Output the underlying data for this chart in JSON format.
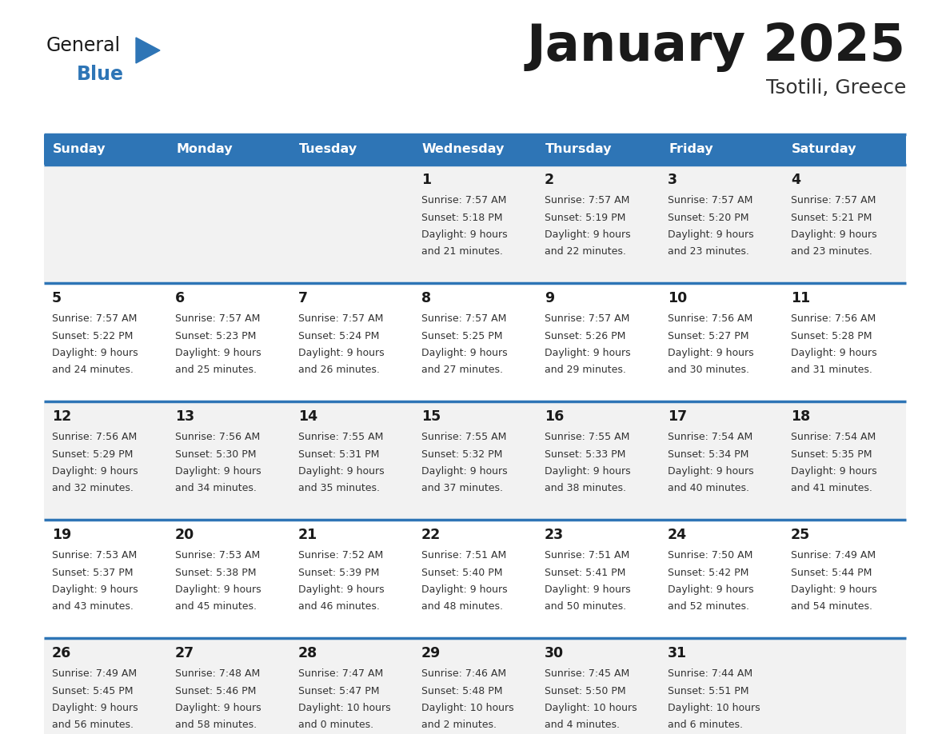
{
  "title": "January 2025",
  "subtitle": "Tsotili, Greece",
  "days_of_week": [
    "Sunday",
    "Monday",
    "Tuesday",
    "Wednesday",
    "Thursday",
    "Friday",
    "Saturday"
  ],
  "header_bg": "#2E75B6",
  "header_text": "#FFFFFF",
  "cell_bg_even": "#F2F2F2",
  "cell_bg_odd": "#FFFFFF",
  "border_color": "#2E75B6",
  "text_color": "#333333",
  "day_num_color": "#1a1a1a",
  "logo_color_general": "#1a1a1a",
  "logo_color_blue": "#2E75B6",
  "calendar_data": [
    [
      null,
      null,
      null,
      {
        "day": 1,
        "sunrise": "7:57 AM",
        "sunset": "5:18 PM",
        "daylight": "9 hours and 21 minutes"
      },
      {
        "day": 2,
        "sunrise": "7:57 AM",
        "sunset": "5:19 PM",
        "daylight": "9 hours and 22 minutes"
      },
      {
        "day": 3,
        "sunrise": "7:57 AM",
        "sunset": "5:20 PM",
        "daylight": "9 hours and 23 minutes"
      },
      {
        "day": 4,
        "sunrise": "7:57 AM",
        "sunset": "5:21 PM",
        "daylight": "9 hours and 23 minutes"
      }
    ],
    [
      {
        "day": 5,
        "sunrise": "7:57 AM",
        "sunset": "5:22 PM",
        "daylight": "9 hours and 24 minutes"
      },
      {
        "day": 6,
        "sunrise": "7:57 AM",
        "sunset": "5:23 PM",
        "daylight": "9 hours and 25 minutes"
      },
      {
        "day": 7,
        "sunrise": "7:57 AM",
        "sunset": "5:24 PM",
        "daylight": "9 hours and 26 minutes"
      },
      {
        "day": 8,
        "sunrise": "7:57 AM",
        "sunset": "5:25 PM",
        "daylight": "9 hours and 27 minutes"
      },
      {
        "day": 9,
        "sunrise": "7:57 AM",
        "sunset": "5:26 PM",
        "daylight": "9 hours and 29 minutes"
      },
      {
        "day": 10,
        "sunrise": "7:56 AM",
        "sunset": "5:27 PM",
        "daylight": "9 hours and 30 minutes"
      },
      {
        "day": 11,
        "sunrise": "7:56 AM",
        "sunset": "5:28 PM",
        "daylight": "9 hours and 31 minutes"
      }
    ],
    [
      {
        "day": 12,
        "sunrise": "7:56 AM",
        "sunset": "5:29 PM",
        "daylight": "9 hours and 32 minutes"
      },
      {
        "day": 13,
        "sunrise": "7:56 AM",
        "sunset": "5:30 PM",
        "daylight": "9 hours and 34 minutes"
      },
      {
        "day": 14,
        "sunrise": "7:55 AM",
        "sunset": "5:31 PM",
        "daylight": "9 hours and 35 minutes"
      },
      {
        "day": 15,
        "sunrise": "7:55 AM",
        "sunset": "5:32 PM",
        "daylight": "9 hours and 37 minutes"
      },
      {
        "day": 16,
        "sunrise": "7:55 AM",
        "sunset": "5:33 PM",
        "daylight": "9 hours and 38 minutes"
      },
      {
        "day": 17,
        "sunrise": "7:54 AM",
        "sunset": "5:34 PM",
        "daylight": "9 hours and 40 minutes"
      },
      {
        "day": 18,
        "sunrise": "7:54 AM",
        "sunset": "5:35 PM",
        "daylight": "9 hours and 41 minutes"
      }
    ],
    [
      {
        "day": 19,
        "sunrise": "7:53 AM",
        "sunset": "5:37 PM",
        "daylight": "9 hours and 43 minutes"
      },
      {
        "day": 20,
        "sunrise": "7:53 AM",
        "sunset": "5:38 PM",
        "daylight": "9 hours and 45 minutes"
      },
      {
        "day": 21,
        "sunrise": "7:52 AM",
        "sunset": "5:39 PM",
        "daylight": "9 hours and 46 minutes"
      },
      {
        "day": 22,
        "sunrise": "7:51 AM",
        "sunset": "5:40 PM",
        "daylight": "9 hours and 48 minutes"
      },
      {
        "day": 23,
        "sunrise": "7:51 AM",
        "sunset": "5:41 PM",
        "daylight": "9 hours and 50 minutes"
      },
      {
        "day": 24,
        "sunrise": "7:50 AM",
        "sunset": "5:42 PM",
        "daylight": "9 hours and 52 minutes"
      },
      {
        "day": 25,
        "sunrise": "7:49 AM",
        "sunset": "5:44 PM",
        "daylight": "9 hours and 54 minutes"
      }
    ],
    [
      {
        "day": 26,
        "sunrise": "7:49 AM",
        "sunset": "5:45 PM",
        "daylight": "9 hours and 56 minutes"
      },
      {
        "day": 27,
        "sunrise": "7:48 AM",
        "sunset": "5:46 PM",
        "daylight": "9 hours and 58 minutes"
      },
      {
        "day": 28,
        "sunrise": "7:47 AM",
        "sunset": "5:47 PM",
        "daylight": "10 hours and 0 minutes"
      },
      {
        "day": 29,
        "sunrise": "7:46 AM",
        "sunset": "5:48 PM",
        "daylight": "10 hours and 2 minutes"
      },
      {
        "day": 30,
        "sunrise": "7:45 AM",
        "sunset": "5:50 PM",
        "daylight": "10 hours and 4 minutes"
      },
      {
        "day": 31,
        "sunrise": "7:44 AM",
        "sunset": "5:51 PM",
        "daylight": "10 hours and 6 minutes"
      },
      null
    ]
  ]
}
